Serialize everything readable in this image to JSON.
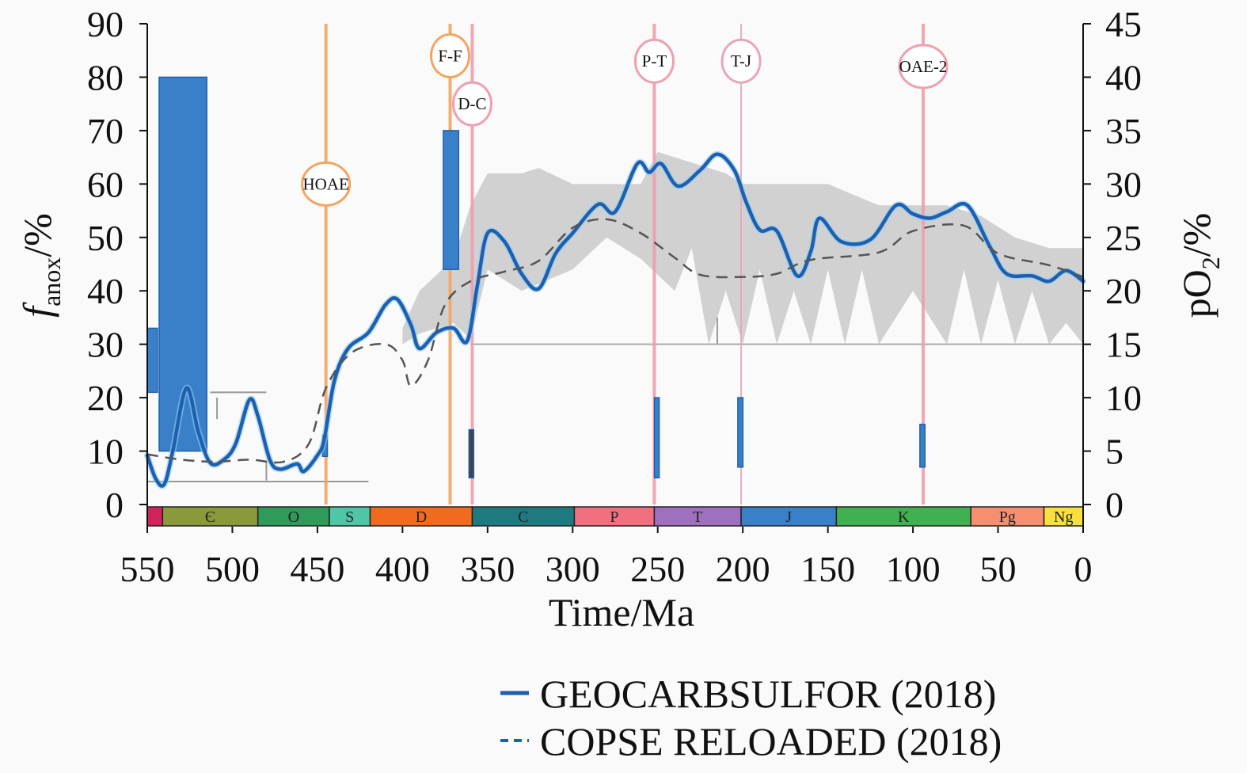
{
  "chart_data": {
    "type": "line",
    "title": "",
    "xlabel": "Time/Ma",
    "ylabel": "f_anox/%",
    "ylabel_main": "f",
    "ylabel_sub": "anox",
    "ylabel_suffix": "/%",
    "y2label": "pO2/%",
    "y2label_main": "pO",
    "y2label_sub": "2",
    "y2label_suffix": "/%",
    "xlim": [
      550,
      0
    ],
    "ylim": [
      0,
      90
    ],
    "y2lim": [
      0,
      45
    ],
    "xticks": [
      "550",
      "500",
      "450",
      "400",
      "350",
      "300",
      "250",
      "200",
      "150",
      "100",
      "50",
      "0"
    ],
    "yticks": [
      "0",
      "10",
      "20",
      "30",
      "40",
      "50",
      "60",
      "70",
      "80",
      "90"
    ],
    "y2ticks": [
      "0",
      "5",
      "10",
      "15",
      "20",
      "25",
      "30",
      "35",
      "40",
      "45"
    ],
    "legend_placement": "bottom-right",
    "series": [
      {
        "name": "GEOCARBSULFOR (2018)",
        "axis": "right",
        "style": "solid",
        "color": "#1f5fb0",
        "x": [
          550,
          545,
          540,
          535,
          527,
          520,
          513,
          505,
          498,
          490,
          485,
          478,
          472,
          462,
          458,
          450,
          446,
          440,
          432,
          420,
          410,
          403,
          395,
          390,
          380,
          370,
          362,
          356,
          350,
          340,
          330,
          320,
          310,
          300,
          285,
          275,
          262,
          255,
          248,
          238,
          225,
          215,
          205,
          198,
          190,
          180,
          168,
          160,
          155,
          142,
          125,
          110,
          100,
          90,
          80,
          68,
          55,
          45,
          30,
          20,
          10,
          0
        ],
        "y": [
          4.6,
          2.4,
          1.9,
          5,
          10.9,
          6.8,
          3.9,
          4.2,
          5.7,
          9.8,
          8.3,
          4.2,
          3.3,
          3.8,
          3.1,
          4.6,
          6.1,
          11.6,
          14.6,
          16.1,
          18.7,
          19.2,
          16.8,
          14.6,
          16.1,
          16.5,
          15.3,
          20.5,
          25.4,
          24.6,
          21.6,
          20.2,
          23.5,
          25.4,
          28.1,
          27.4,
          31.9,
          31.1,
          31.9,
          29.8,
          31.3,
          32.8,
          31.3,
          28.3,
          25.7,
          25.6,
          21.4,
          23.7,
          26.8,
          24.6,
          24.8,
          28,
          27.2,
          26.8,
          27.4,
          28,
          24.2,
          21.6,
          21.4,
          20.9,
          21.9,
          20.9
        ]
      },
      {
        "name": "COPSE RELOADED (2018)",
        "axis": "right",
        "style": "dashed",
        "color": "#555555",
        "x": [
          550,
          530,
          510,
          490,
          470,
          455,
          445,
          430,
          410,
          400,
          395,
          385,
          375,
          360,
          340,
          320,
          300,
          280,
          260,
          240,
          225,
          200,
          180,
          160,
          120,
          100,
          70,
          50,
          20,
          0
        ],
        "y": [
          4.7,
          4.2,
          4,
          4.2,
          4,
          5.7,
          10.9,
          14.2,
          15,
          13.5,
          11.1,
          13.5,
          18.7,
          20.9,
          21.8,
          22.8,
          25.9,
          26.7,
          25.4,
          23.1,
          21.5,
          21.3,
          21.6,
          22.9,
          23.6,
          25.6,
          26.1,
          23.5,
          22.4,
          21.3
        ]
      }
    ],
    "uncertainty_band": {
      "axis": "right",
      "color": "#cccccc",
      "upper": {
        "x": [
          400,
          390,
          370,
          360,
          350,
          330,
          320,
          300,
          280,
          260,
          250,
          230,
          210,
          200,
          180,
          150,
          120,
          100,
          80,
          60,
          40,
          20,
          0
        ],
        "y": [
          16.5,
          20,
          23,
          28,
          31,
          31,
          31.5,
          30,
          30,
          30,
          33,
          32,
          31,
          30,
          30,
          30,
          28,
          28,
          28,
          27,
          25,
          24,
          24
        ]
      },
      "lower": {
        "x": [
          400,
          390,
          370,
          360,
          350,
          330,
          300,
          280,
          260,
          240,
          230,
          220,
          210,
          200,
          190,
          180,
          170,
          160,
          150,
          140,
          130,
          120,
          100,
          80,
          70,
          60,
          50,
          40,
          30,
          20,
          10,
          0
        ],
        "y": [
          15,
          16,
          17,
          15.5,
          22,
          20,
          22,
          25,
          23,
          20,
          24,
          15,
          20,
          15,
          22,
          15,
          20,
          15,
          22,
          15,
          22,
          15,
          20,
          15,
          22,
          15,
          21,
          15,
          20,
          15,
          17,
          15
        ]
      }
    },
    "anoxia_bars": [
      {
        "x0": 550,
        "x1": 544,
        "y0": 21,
        "y1": 33
      },
      {
        "x0": 543,
        "x1": 515,
        "y0": 10,
        "y1": 80
      },
      {
        "x0": 376,
        "x1": 367,
        "y0": 44,
        "y1": 70
      },
      {
        "x0": 446,
        "x1": 444,
        "y0": 9,
        "y1": 13
      },
      {
        "x0": 360,
        "x1": 358,
        "y0": 5,
        "y1": 14
      },
      {
        "x0": 251,
        "x1": 249,
        "y0": 5,
        "y1": 20
      },
      {
        "x0": 202,
        "x1": 199,
        "y0": 7,
        "y1": 20
      },
      {
        "x0": 95,
        "x1": 92,
        "y0": 7,
        "y1": 15
      }
    ],
    "events": [
      {
        "label": "HOAE",
        "time": 445,
        "color": "#f4a460",
        "label_y": 60
      },
      {
        "label": "F-F",
        "time": 372,
        "color": "#f4a460",
        "label_y": 84
      },
      {
        "label": "D-C",
        "time": 359,
        "color": "#ee9fb0",
        "label_y": 75
      },
      {
        "label": "P-T",
        "time": 252,
        "color": "#ee9fb0",
        "label_y": 83
      },
      {
        "label": "T-J",
        "time": 201,
        "color": "#e9a6b6",
        "label_y": 83
      },
      {
        "label": "OAE-2",
        "time": 94,
        "color": "#ee9fb0",
        "label_y": 82
      }
    ],
    "threshold_line": {
      "y2": 15,
      "x0": 360,
      "x1": 0
    },
    "periods": [
      {
        "label": "",
        "start": 550,
        "end": 541,
        "color": "#d0245c"
      },
      {
        "label": "Є",
        "start": 541,
        "end": 485,
        "color": "#8a9a3a"
      },
      {
        "label": "O",
        "start": 485,
        "end": 443,
        "color": "#2f9a5a"
      },
      {
        "label": "S",
        "start": 443,
        "end": 419,
        "color": "#4fc7a6"
      },
      {
        "label": "D",
        "start": 419,
        "end": 359,
        "color": "#f06a20"
      },
      {
        "label": "C",
        "start": 359,
        "end": 299,
        "color": "#1f7a80"
      },
      {
        "label": "P",
        "start": 299,
        "end": 252,
        "color": "#f07080"
      },
      {
        "label": "T",
        "start": 252,
        "end": 201,
        "color": "#a070c0"
      },
      {
        "label": "J",
        "start": 201,
        "end": 145,
        "color": "#3a80c8"
      },
      {
        "label": "K",
        "start": 145,
        "end": 66,
        "color": "#40b050"
      },
      {
        "label": "Pg",
        "start": 66,
        "end": 23,
        "color": "#f49070"
      },
      {
        "label": "Ng",
        "start": 23,
        "end": 0,
        "color": "#f8e040"
      }
    ]
  }
}
